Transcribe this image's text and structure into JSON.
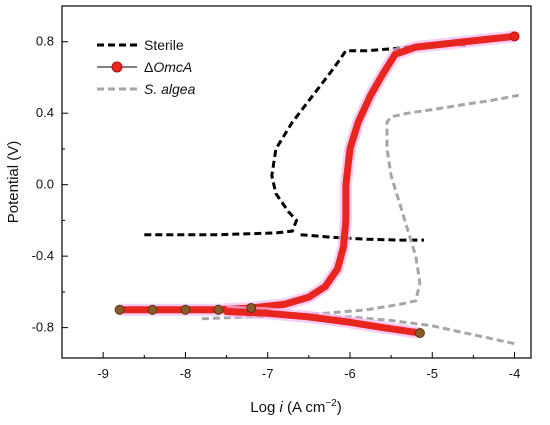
{
  "chart_data": {
    "type": "line",
    "xlabel": {
      "prefix": "Log ",
      "italic": "i",
      "suffix": " (A cm",
      "sup": "−2",
      "close": ")"
    },
    "ylabel": "Potential (V)",
    "xlim": [
      -9.5,
      -3.8
    ],
    "ylim": [
      -0.97,
      1.0
    ],
    "xticks": [
      -9,
      -8,
      -7,
      -6,
      -5,
      -4
    ],
    "xtick_labels": [
      "-9",
      "-8",
      "-7",
      "-6",
      "-5",
      "-4"
    ],
    "yticks": [
      -0.8,
      -0.4,
      0.0,
      0.4,
      0.8
    ],
    "ytick_labels": [
      "-0.8",
      "-0.4",
      "0.0",
      "0.4",
      "0.8"
    ],
    "grid": false,
    "legend_position": "top-left",
    "series": [
      {
        "name": "Sterile",
        "style": "dashed",
        "color": "#000000",
        "points": [
          [
            -8.5,
            -0.28
          ],
          [
            -7.6,
            -0.28
          ],
          [
            -6.9,
            -0.27
          ],
          [
            -6.7,
            -0.26
          ],
          [
            -6.65,
            -0.2
          ],
          [
            -6.75,
            -0.15
          ],
          [
            -6.9,
            -0.05
          ],
          [
            -6.95,
            0.05
          ],
          [
            -6.9,
            0.2
          ],
          [
            -6.7,
            0.35
          ],
          [
            -6.45,
            0.5
          ],
          [
            -6.2,
            0.65
          ],
          [
            -6.05,
            0.75
          ],
          [
            -5.8,
            0.75
          ],
          [
            -5.5,
            0.76
          ],
          [
            -5.3,
            0.77
          ],
          [
            -5.0,
            0.78
          ],
          [
            -4.8,
            0.79
          ],
          [
            -4.6,
            0.78
          ]
        ],
        "reduction_branch": [
          [
            -6.6,
            -0.28
          ],
          [
            -6.2,
            -0.295
          ],
          [
            -5.8,
            -0.305
          ],
          [
            -5.4,
            -0.31
          ],
          [
            -5.1,
            -0.31
          ]
        ]
      },
      {
        "name": "ΔOmcA",
        "style": "solid-marker",
        "color": "#e8251f",
        "points": [
          [
            -8.8,
            -0.7
          ],
          [
            -8.4,
            -0.7
          ],
          [
            -8.0,
            -0.7
          ],
          [
            -7.6,
            -0.7
          ],
          [
            -7.2,
            -0.69
          ],
          [
            -6.8,
            -0.67
          ],
          [
            -6.5,
            -0.63
          ],
          [
            -6.3,
            -0.57
          ],
          [
            -6.15,
            -0.47
          ],
          [
            -6.08,
            -0.35
          ],
          [
            -6.05,
            -0.2
          ],
          [
            -6.05,
            0.0
          ],
          [
            -6.0,
            0.2
          ],
          [
            -5.9,
            0.35
          ],
          [
            -5.75,
            0.5
          ],
          [
            -5.6,
            0.62
          ],
          [
            -5.45,
            0.73
          ],
          [
            -5.2,
            0.77
          ],
          [
            -4.8,
            0.79
          ],
          [
            -4.4,
            0.81
          ],
          [
            -4.0,
            0.83
          ]
        ],
        "reduction_branch": [
          [
            -7.5,
            -0.71
          ],
          [
            -7.0,
            -0.72
          ],
          [
            -6.5,
            -0.74
          ],
          [
            -6.0,
            -0.77
          ],
          [
            -5.6,
            -0.8
          ],
          [
            -5.3,
            -0.82
          ],
          [
            -5.15,
            -0.83
          ]
        ]
      },
      {
        "name": "S. algea",
        "style": "dashed",
        "color": "#a6a6a6",
        "points": [
          [
            -7.8,
            -0.75
          ],
          [
            -7.2,
            -0.74
          ],
          [
            -6.8,
            -0.73
          ],
          [
            -6.3,
            -0.72
          ],
          [
            -5.8,
            -0.7
          ],
          [
            -5.4,
            -0.67
          ],
          [
            -5.2,
            -0.65
          ],
          [
            -5.15,
            -0.55
          ],
          [
            -5.2,
            -0.4
          ],
          [
            -5.3,
            -0.25
          ],
          [
            -5.4,
            -0.1
          ],
          [
            -5.5,
            0.05
          ],
          [
            -5.55,
            0.2
          ],
          [
            -5.55,
            0.35
          ],
          [
            -5.5,
            0.38
          ],
          [
            -5.3,
            0.4
          ],
          [
            -5.0,
            0.42
          ],
          [
            -4.6,
            0.45
          ],
          [
            -4.3,
            0.47
          ],
          [
            -3.95,
            0.5
          ]
        ],
        "reduction_branch": [
          [
            -7.0,
            -0.735
          ],
          [
            -6.5,
            -0.74
          ],
          [
            -6.0,
            -0.74
          ],
          [
            -5.5,
            -0.76
          ],
          [
            -5.0,
            -0.79
          ],
          [
            -4.6,
            -0.83
          ],
          [
            -4.3,
            -0.86
          ],
          [
            -4.0,
            -0.89
          ]
        ]
      }
    ]
  }
}
